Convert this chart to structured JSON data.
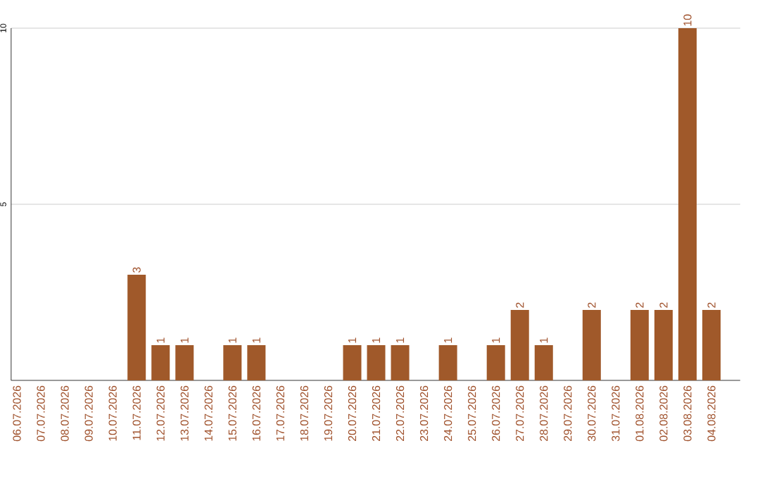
{
  "chart_data": {
    "type": "bar",
    "categories": [
      "06.07.2026",
      "07.07.2026",
      "08.07.2026",
      "09.07.2026",
      "10.07.2026",
      "11.07.2026",
      "12.07.2026",
      "13.07.2026",
      "14.07.2026",
      "15.07.2026",
      "16.07.2026",
      "17.07.2026",
      "18.07.2026",
      "19.07.2026",
      "20.07.2026",
      "21.07.2026",
      "22.07.2026",
      "23.07.2026",
      "24.07.2026",
      "25.07.2026",
      "26.07.2026",
      "27.07.2026",
      "28.07.2026",
      "29.07.2026",
      "30.07.2026",
      "31.07.2026",
      "01.08.2026",
      "02.08.2026",
      "03.08.2026",
      "04.08.2026"
    ],
    "values": [
      0,
      0,
      0,
      0,
      0,
      3,
      1,
      1,
      0,
      1,
      1,
      0,
      0,
      0,
      1,
      1,
      1,
      0,
      1,
      0,
      1,
      2,
      1,
      0,
      2,
      0,
      2,
      2,
      10,
      2
    ],
    "value_labels": [
      null,
      null,
      null,
      null,
      null,
      "3",
      "1",
      "1",
      null,
      "1",
      "1",
      null,
      null,
      null,
      "1",
      "1",
      "1",
      null,
      "1",
      null,
      "1",
      "2",
      "1",
      null,
      "2",
      null,
      "2",
      "2",
      "10",
      "2"
    ],
    "color": "#a0592a",
    "ylim": [
      0,
      10
    ],
    "yticks": [
      5,
      10
    ],
    "grid": "y"
  }
}
